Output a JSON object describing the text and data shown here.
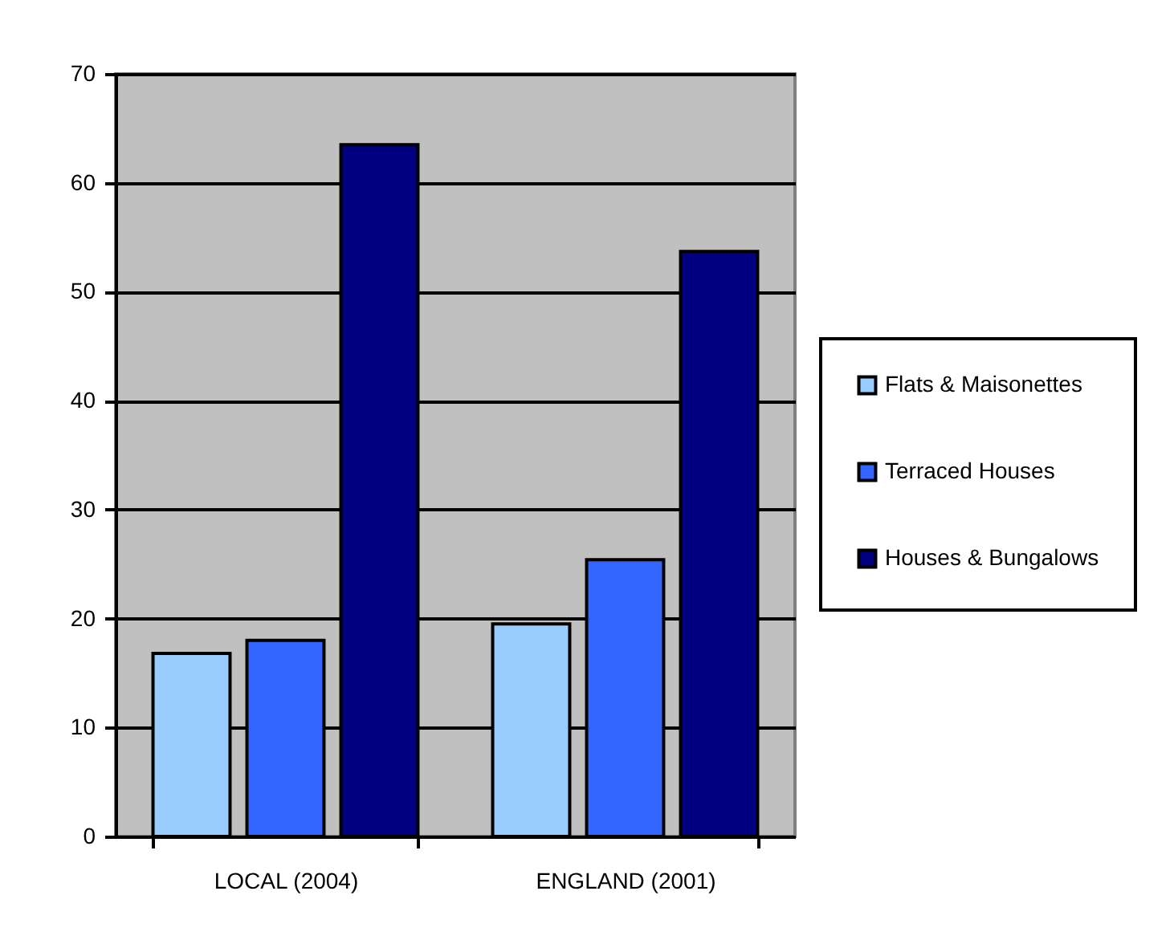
{
  "chart_data": {
    "type": "bar",
    "categories": [
      "LOCAL (2004)",
      "ENGLAND (2001)"
    ],
    "series": [
      {
        "name": "Flats & Maisonettes",
        "color": "#99ccff",
        "values": [
          16.8,
          19.5
        ]
      },
      {
        "name": "Terraced Houses",
        "color": "#3366ff",
        "values": [
          18.0,
          25.4
        ]
      },
      {
        "name": "Houses & Bungalows",
        "color": "#000080",
        "values": [
          63.5,
          53.7
        ]
      }
    ],
    "ylim": [
      0,
      70
    ],
    "yticks": [
      0,
      10,
      20,
      30,
      40,
      50,
      60,
      70
    ],
    "grid": "y",
    "legend": "right"
  }
}
